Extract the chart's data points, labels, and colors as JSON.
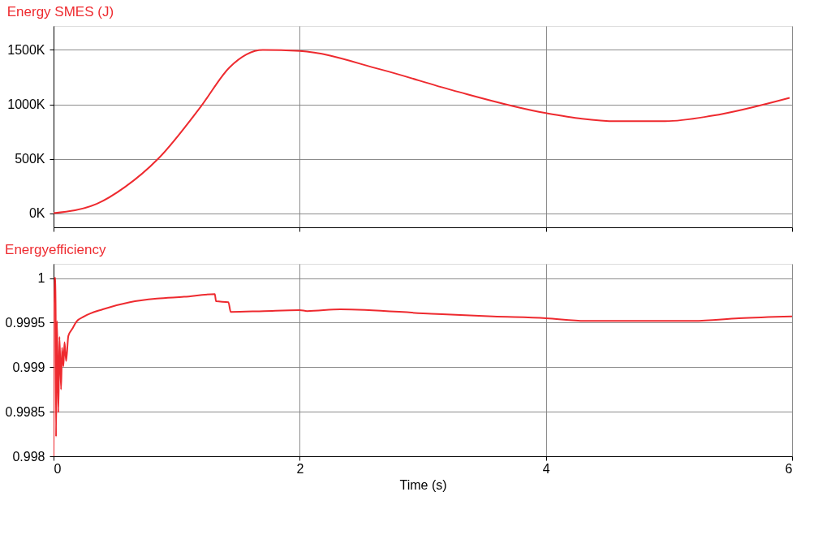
{
  "chart_data": [
    {
      "type": "line",
      "title": "Energy SMES (J)",
      "xlim": [
        0,
        6
      ],
      "xticks": [
        0,
        2,
        4,
        6
      ],
      "ylim": [
        -130,
        1720
      ],
      "yticks": [
        {
          "value": 0,
          "label": "0K"
        },
        {
          "value": 500,
          "label": "500K"
        },
        {
          "value": 1000,
          "label": "1000K"
        },
        {
          "value": 1500,
          "label": "1500K"
        }
      ],
      "grid": true,
      "tick_labels": "y",
      "line_style": "solid",
      "series": [
        {
          "color": "#ee2a2f",
          "x": [
            0,
            0.35,
            0.58,
            0.85,
            1.2,
            1.43,
            1.7,
            2.0,
            2.66,
            3.24,
            4.0,
            4.58,
            4.97,
            5.35,
            5.98
          ],
          "values": [
            0,
            85,
            240,
            500,
            985,
            1340,
            1500,
            1490,
            1320,
            1130,
            920,
            845,
            845,
            895,
            1060
          ]
        }
      ]
    },
    {
      "type": "line",
      "title": "Energyefficiency",
      "xlabel": "Time (s)",
      "xlim": [
        0,
        6
      ],
      "xticks": [
        0,
        2,
        4,
        6
      ],
      "ylim": [
        0.998,
        1.00016
      ],
      "yticks": [
        0.998,
        0.9985,
        0.999,
        0.9995,
        1
      ],
      "grid": true,
      "line_style": "solid",
      "series": [
        {
          "color": "#ee2a2f",
          "x": [
            0,
            0.006,
            0.017,
            0.02,
            0.028,
            0.039,
            0.048,
            0.061,
            0.069,
            0.08,
            0.089,
            0.102,
            0.12,
            0.152,
            0.185,
            0.25,
            0.4,
            0.62,
            0.84,
            1.06,
            1.31,
            1.32,
            1.42,
            1.44,
            1.71,
            2.0,
            2.06,
            2.33,
            3.07,
            3.57,
            4.0,
            4.32,
            4.82,
            5.2,
            5.57,
            6.0
          ],
          "values": [
            0.998,
            1.0,
            1.0,
            0.99822,
            0.99952,
            0.99849,
            0.99934,
            0.99875,
            0.99922,
            0.99901,
            0.99928,
            0.99907,
            0.99935,
            0.99943,
            0.99951,
            0.99957,
            0.99965,
            0.99973,
            0.99977,
            0.99979,
            0.99982,
            0.99974,
            0.99973,
            0.99962,
            0.99963,
            0.99964,
            0.99963,
            0.99965,
            0.9996,
            0.99957,
            0.99955,
            0.99952,
            0.99952,
            0.99952,
            0.99955,
            0.99957
          ]
        }
      ]
    }
  ]
}
